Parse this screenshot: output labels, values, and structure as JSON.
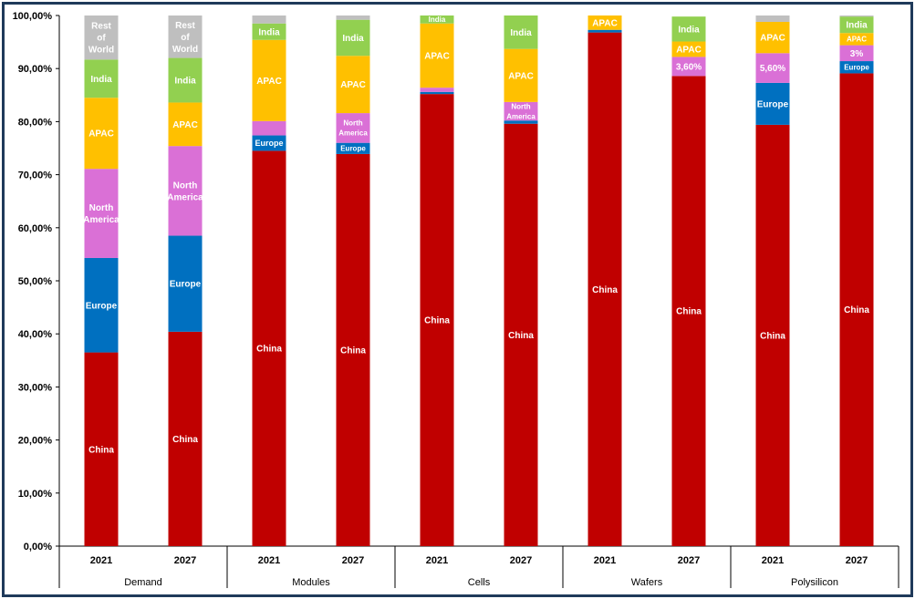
{
  "chart_data": {
    "type": "bar",
    "stacked": true,
    "title": "",
    "xlabel": "",
    "ylabel": "",
    "ylim": [
      0,
      100
    ],
    "y_ticks": [
      "0,00%",
      "10,00%",
      "20,00%",
      "30,00%",
      "40,00%",
      "50,00%",
      "60,00%",
      "70,00%",
      "80,00%",
      "90,00%",
      "100,00%"
    ],
    "grid": false,
    "legend": "none",
    "colors": {
      "China": "#C00000",
      "Europe": "#0070C0",
      "North America": "#DA70D6",
      "APAC": "#FFC000",
      "India": "#92D050",
      "Rest of World": "#BFBFBF"
    },
    "groups": [
      {
        "name": "Demand",
        "bars": [
          {
            "year": "2021",
            "segments": [
              {
                "series": "China",
                "value": 36.5,
                "label": "China"
              },
              {
                "series": "Europe",
                "value": 17.8,
                "label": "Europe"
              },
              {
                "series": "North America",
                "value": 16.8,
                "label": "North America"
              },
              {
                "series": "APAC",
                "value": 13.4,
                "label": "APAC"
              },
              {
                "series": "India",
                "value": 7.2,
                "label": "India"
              },
              {
                "series": "Rest of World",
                "value": 8.3,
                "label": "Rest of World"
              }
            ]
          },
          {
            "year": "2027",
            "segments": [
              {
                "series": "China",
                "value": 40.4,
                "label": "China"
              },
              {
                "series": "Europe",
                "value": 18.1,
                "label": "Europe"
              },
              {
                "series": "North America",
                "value": 16.9,
                "label": "North America"
              },
              {
                "series": "APAC",
                "value": 8.2,
                "label": "APAC"
              },
              {
                "series": "India",
                "value": 8.4,
                "label": "India"
              },
              {
                "series": "Rest of World",
                "value": 8.0,
                "label": "Rest of World"
              }
            ]
          }
        ]
      },
      {
        "name": "Modules",
        "bars": [
          {
            "year": "2021",
            "segments": [
              {
                "series": "China",
                "value": 74.5,
                "label": "China"
              },
              {
                "series": "Europe",
                "value": 2.9,
                "label": "Europe"
              },
              {
                "series": "North America",
                "value": 2.7,
                "label": ""
              },
              {
                "series": "APAC",
                "value": 15.3,
                "label": "APAC"
              },
              {
                "series": "India",
                "value": 3.1,
                "label": "India"
              },
              {
                "series": "Rest of World",
                "value": 1.5,
                "label": ""
              }
            ]
          },
          {
            "year": "2027",
            "segments": [
              {
                "series": "China",
                "value": 73.9,
                "label": "China"
              },
              {
                "series": "Europe",
                "value": 2.1,
                "label": "Europe"
              },
              {
                "series": "North America",
                "value": 5.6,
                "label": "North America"
              },
              {
                "series": "APAC",
                "value": 10.8,
                "label": "APAC"
              },
              {
                "series": "India",
                "value": 6.8,
                "label": "India"
              },
              {
                "series": "Rest of World",
                "value": 0.8,
                "label": ""
              }
            ]
          }
        ]
      },
      {
        "name": "Cells",
        "bars": [
          {
            "year": "2021",
            "segments": [
              {
                "series": "China",
                "value": 85.2,
                "label": "China"
              },
              {
                "series": "Europe",
                "value": 0.4,
                "label": ""
              },
              {
                "series": "North America",
                "value": 0.8,
                "label": ""
              },
              {
                "series": "APAC",
                "value": 12.1,
                "label": "APAC"
              },
              {
                "series": "India",
                "value": 1.5,
                "label": "India"
              }
            ]
          },
          {
            "year": "2027",
            "segments": [
              {
                "series": "China",
                "value": 79.6,
                "label": "China"
              },
              {
                "series": "Europe",
                "value": 0.6,
                "label": ""
              },
              {
                "series": "North America",
                "value": 3.5,
                "label": "North America"
              },
              {
                "series": "APAC",
                "value": 10.0,
                "label": "APAC"
              },
              {
                "series": "India",
                "value": 6.3,
                "label": "India"
              }
            ]
          }
        ]
      },
      {
        "name": "Wafers",
        "bars": [
          {
            "year": "2021",
            "segments": [
              {
                "series": "China",
                "value": 96.8,
                "label": "China"
              },
              {
                "series": "Europe",
                "value": 0.5,
                "label": ""
              },
              {
                "series": "APAC",
                "value": 2.7,
                "label": "APAC"
              }
            ]
          },
          {
            "year": "2027",
            "segments": [
              {
                "series": "China",
                "value": 88.6,
                "label": "China"
              },
              {
                "series": "North America",
                "value": 3.6,
                "label": "3,60%"
              },
              {
                "series": "APAC",
                "value": 2.9,
                "label": "APAC"
              },
              {
                "series": "India",
                "value": 4.7,
                "label": "India"
              }
            ]
          }
        ]
      },
      {
        "name": "Polysilicon",
        "bars": [
          {
            "year": "2021",
            "segments": [
              {
                "series": "China",
                "value": 79.4,
                "label": "China"
              },
              {
                "series": "Europe",
                "value": 7.9,
                "label": "Europe"
              },
              {
                "series": "North America",
                "value": 5.6,
                "label": "5,60%"
              },
              {
                "series": "APAC",
                "value": 5.9,
                "label": "APAC"
              },
              {
                "series": "Rest of World",
                "value": 1.2,
                "label": ""
              }
            ]
          },
          {
            "year": "2027",
            "segments": [
              {
                "series": "China",
                "value": 89.1,
                "label": "China"
              },
              {
                "series": "Europe",
                "value": 2.3,
                "label": "Europe"
              },
              {
                "series": "North America",
                "value": 3.0,
                "label": "3%"
              },
              {
                "series": "APAC",
                "value": 2.3,
                "label": "APAC"
              },
              {
                "series": "India",
                "value": 3.1,
                "label": "India"
              },
              {
                "series": "Rest of World",
                "value": 0.2,
                "label": ""
              }
            ]
          }
        ]
      }
    ]
  }
}
